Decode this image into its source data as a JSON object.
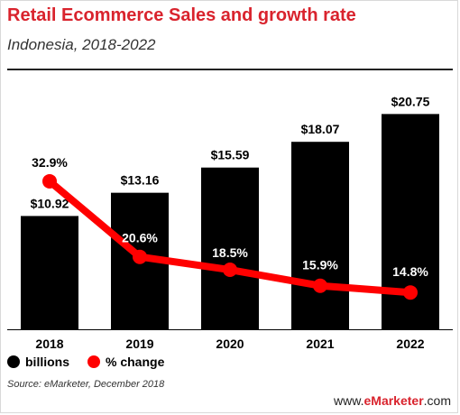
{
  "header": {
    "title": "Retail Ecommerce Sales and growth rate",
    "subtitle": "Indonesia, 2018-2022"
  },
  "chart_data": {
    "type": "bar",
    "categories": [
      "2018",
      "2019",
      "2020",
      "2021",
      "2022"
    ],
    "series": [
      {
        "name": "billions",
        "type": "bar",
        "values": [
          10.92,
          13.16,
          15.59,
          18.07,
          20.75
        ],
        "labels": [
          "$10.92",
          "$13.16",
          "$15.59",
          "$18.07",
          "$20.75"
        ],
        "color": "#000000"
      },
      {
        "name": "% change",
        "type": "line",
        "values": [
          32.9,
          20.6,
          18.5,
          15.9,
          14.8
        ],
        "labels": [
          "32.9%",
          "20.6%",
          "18.5%",
          "15.9%",
          "14.8%"
        ],
        "color": "#ff0000"
      }
    ],
    "legend_position": "bottom-left",
    "grid": false
  },
  "legend": {
    "bars_label": "billions",
    "line_label": "% change"
  },
  "footer": {
    "source": "Source: eMarketer, December 2018",
    "brand_prefix": "www.",
    "brand_name": "eMarketer",
    "brand_suffix": ".com"
  },
  "colors": {
    "title": "#d9232d",
    "bar": "#000000",
    "line": "#ff0000"
  }
}
